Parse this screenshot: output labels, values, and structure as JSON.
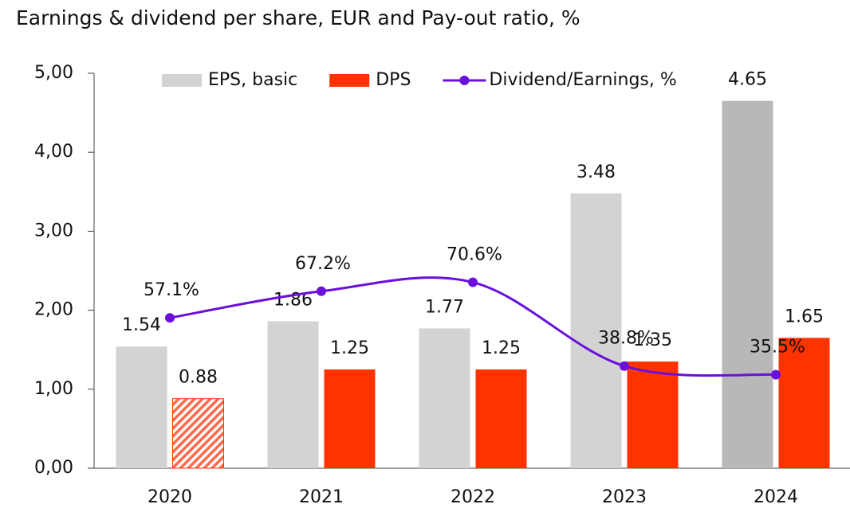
{
  "chart_data": {
    "type": "bar",
    "title": "Earnings & dividend per share, EUR and Pay-out ratio, %",
    "categories": [
      "2020",
      "2021",
      "2022",
      "2023",
      "2024"
    ],
    "series": [
      {
        "name": "EPS, basic",
        "type": "bar",
        "color": "#d3d3d3",
        "colors": [
          "#d3d3d3",
          "#d3d3d3",
          "#d3d3d3",
          "#d3d3d3",
          "#b8b8b8"
        ],
        "values": [
          1.54,
          1.86,
          1.77,
          3.48,
          4.65
        ]
      },
      {
        "name": "DPS",
        "type": "bar",
        "color": "#ff3300",
        "hatched_points": [
          0
        ],
        "values": [
          0.88,
          1.25,
          1.25,
          1.35,
          1.65
        ]
      },
      {
        "name": "Dividend/Earnings, %",
        "type": "line",
        "axis": "y2",
        "color": "#6a0fdc",
        "values": [
          57.1,
          67.2,
          70.6,
          38.8,
          35.5
        ],
        "value_labels": [
          "57.1%",
          "67.2%",
          "70.6%",
          "38.8%",
          "35.5%"
        ]
      }
    ],
    "ylim": [
      0,
      5
    ],
    "yticks": [
      {
        "value": 0,
        "label": "0,00"
      },
      {
        "value": 1,
        "label": "1,00"
      },
      {
        "value": 2,
        "label": "2,00"
      },
      {
        "value": 3,
        "label": "3,00"
      },
      {
        "value": 4,
        "label": "4,00"
      },
      {
        "value": 5,
        "label": "5,00"
      }
    ],
    "y2lim": [
      0,
      150
    ],
    "legend": "top"
  }
}
